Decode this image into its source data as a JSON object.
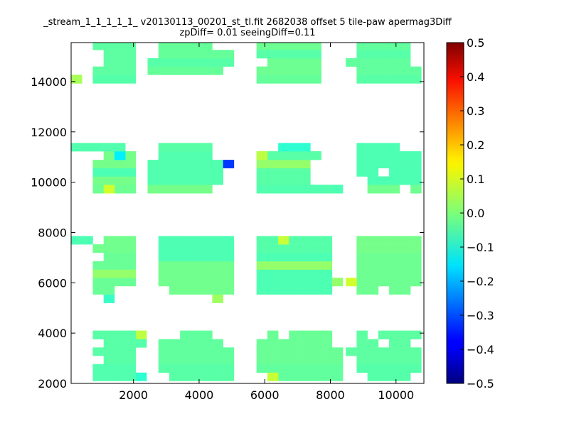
{
  "chart_data": {
    "type": "heatmap",
    "title_line1": "_stream_1_1_1_1_1_ v20130113_00201_st_tl.fit 2682038 offset 5 tile-paw apermag3Diff",
    "title_line2": "zpDiff= 0.01 seeingDiff=0.11",
    "xlim": [
      100,
      10850
    ],
    "ylim": [
      2000,
      15550
    ],
    "x_ticks": [
      2000,
      4000,
      6000,
      8000,
      10000
    ],
    "y_ticks": [
      2000,
      4000,
      6000,
      8000,
      10000,
      12000,
      14000
    ],
    "colorbar": {
      "range": [
        -0.5,
        0.5
      ],
      "ticks": [
        "0.5",
        "0.4",
        "0.3",
        "0.2",
        "0.1",
        "0.0",
        "−0.1",
        "−0.2",
        "−0.3",
        "−0.4",
        "−0.5"
      ],
      "colormap": "jet"
    },
    "cell_size": [
      330,
      330
    ],
    "base_value": -0.03,
    "regions": [
      {
        "x": [
          760,
          2070
        ],
        "y": [
          3760,
          4100
        ]
      },
      {
        "x": [
          2070,
          2400
        ],
        "y": [
          3760,
          4100
        ],
        "v": 0.06
      },
      {
        "x": [
          1090,
          2070
        ],
        "y": [
          3430,
          3760
        ]
      },
      {
        "x": [
          2070,
          2400
        ],
        "y": [
          3430,
          3760
        ]
      },
      {
        "x": [
          760,
          2070
        ],
        "y": [
          3100,
          3430
        ]
      },
      {
        "x": [
          1090,
          2070
        ],
        "y": [
          2770,
          3100
        ]
      },
      {
        "x": [
          760,
          2070
        ],
        "y": [
          2430,
          2770
        ]
      },
      {
        "x": [
          760,
          2070
        ],
        "y": [
          2100,
          2430
        ]
      },
      {
        "x": [
          2070,
          2400
        ],
        "y": [
          2100,
          2430
        ],
        "v": -0.08
      },
      {
        "x": [
          3420,
          4400
        ],
        "y": [
          3760,
          4100
        ]
      },
      {
        "x": [
          2760,
          4730
        ],
        "y": [
          3430,
          3760
        ]
      },
      {
        "x": [
          2760,
          5060
        ],
        "y": [
          3100,
          3430
        ]
      },
      {
        "x": [
          2760,
          5060
        ],
        "y": [
          2770,
          3100
        ]
      },
      {
        "x": [
          2760,
          5060
        ],
        "y": [
          2430,
          2770
        ]
      },
      {
        "x": [
          3090,
          5060
        ],
        "y": [
          2100,
          2430
        ]
      },
      {
        "x": [
          6080,
          6410
        ],
        "y": [
          3760,
          4100
        ]
      },
      {
        "x": [
          6740,
          8050
        ],
        "y": [
          3760,
          4100
        ]
      },
      {
        "x": [
          5750,
          8050
        ],
        "y": [
          3430,
          3760
        ]
      },
      {
        "x": [
          5750,
          8380
        ],
        "y": [
          3100,
          3430
        ]
      },
      {
        "x": [
          5750,
          8380
        ],
        "y": [
          2770,
          3100
        ]
      },
      {
        "x": [
          5750,
          8380
        ],
        "y": [
          2430,
          2770
        ]
      },
      {
        "x": [
          6080,
          8380
        ],
        "y": [
          2100,
          2430
        ]
      },
      {
        "x": [
          6080,
          6410
        ],
        "y": [
          2100,
          2430
        ],
        "v": 0.07
      },
      {
        "x": [
          8800,
          9130
        ],
        "y": [
          3760,
          4100
        ]
      },
      {
        "x": [
          9460,
          10770
        ],
        "y": [
          3760,
          4100
        ]
      },
      {
        "x": [
          8800,
          9460
        ],
        "y": [
          3430,
          3760
        ]
      },
      {
        "x": [
          9790,
          10440
        ],
        "y": [
          3430,
          3760
        ]
      },
      {
        "x": [
          8470,
          10770
        ],
        "y": [
          3100,
          3430
        ]
      },
      {
        "x": [
          8800,
          10770
        ],
        "y": [
          2770,
          3100
        ]
      },
      {
        "x": [
          8800,
          10770
        ],
        "y": [
          2430,
          2770
        ]
      },
      {
        "x": [
          9130,
          10440
        ],
        "y": [
          2100,
          2430
        ]
      },
      {
        "x": [
          1090,
          1420
        ],
        "y": [
          5200,
          5540
        ],
        "v": -0.07
      },
      {
        "x": [
          760,
          1420
        ],
        "y": [
          5540,
          5870
        ]
      },
      {
        "x": [
          760,
          2070
        ],
        "y": [
          5870,
          6200
        ]
      },
      {
        "x": [
          760,
          2070
        ],
        "y": [
          6200,
          6530
        ],
        "v": 0.02
      },
      {
        "x": [
          760,
          2070
        ],
        "y": [
          6530,
          6860
        ]
      },
      {
        "x": [
          1090,
          2070
        ],
        "y": [
          6860,
          7200
        ]
      },
      {
        "x": [
          760,
          2070
        ],
        "y": [
          7200,
          7530
        ]
      },
      {
        "x": [
          1090,
          2070
        ],
        "y": [
          7530,
          7860
        ]
      },
      {
        "x": [
          100,
          760
        ],
        "y": [
          7530,
          7860
        ],
        "v": -0.05
      },
      {
        "x": [
          4400,
          4730
        ],
        "y": [
          5200,
          5540
        ],
        "v": 0.03
      },
      {
        "x": [
          3090,
          5060
        ],
        "y": [
          5540,
          5870
        ]
      },
      {
        "x": [
          2760,
          5060
        ],
        "y": [
          5870,
          6200
        ]
      },
      {
        "x": [
          2760,
          5060
        ],
        "y": [
          6200,
          6530
        ]
      },
      {
        "x": [
          2760,
          5060
        ],
        "y": [
          6530,
          6860
        ]
      },
      {
        "x": [
          2760,
          5060
        ],
        "y": [
          6860,
          7200
        ],
        "v": -0.05
      },
      {
        "x": [
          2760,
          5060
        ],
        "y": [
          7200,
          7530
        ]
      },
      {
        "x": [
          2760,
          5060
        ],
        "y": [
          7530,
          7860
        ]
      },
      {
        "x": [
          5750,
          8050
        ],
        "y": [
          5540,
          5870
        ]
      },
      {
        "x": [
          5750,
          8050
        ],
        "y": [
          5870,
          6200
        ]
      },
      {
        "x": [
          8050,
          8380
        ],
        "y": [
          5870,
          6200
        ],
        "v": 0.02
      },
      {
        "x": [
          5750,
          8050
        ],
        "y": [
          6200,
          6530
        ]
      },
      {
        "x": [
          5750,
          8050
        ],
        "y": [
          6530,
          6860
        ],
        "v": 0.02
      },
      {
        "x": [
          5750,
          8050
        ],
        "y": [
          6860,
          7200
        ],
        "v": -0.05
      },
      {
        "x": [
          5750,
          8050
        ],
        "y": [
          7200,
          7530
        ]
      },
      {
        "x": [
          5750,
          6410
        ],
        "y": [
          7530,
          7860
        ]
      },
      {
        "x": [
          6410,
          6740
        ],
        "y": [
          7530,
          7860
        ],
        "v": 0.07
      },
      {
        "x": [
          6740,
          8050
        ],
        "y": [
          7530,
          7860
        ]
      },
      {
        "x": [
          8800,
          9460
        ],
        "y": [
          5540,
          5870
        ]
      },
      {
        "x": [
          9790,
          10440
        ],
        "y": [
          5540,
          5870
        ]
      },
      {
        "x": [
          8800,
          10770
        ],
        "y": [
          5870,
          6200
        ]
      },
      {
        "x": [
          8470,
          8800
        ],
        "y": [
          5870,
          6200
        ],
        "v": 0.08
      },
      {
        "x": [
          8800,
          10770
        ],
        "y": [
          6200,
          6530
        ]
      },
      {
        "x": [
          8800,
          10770
        ],
        "y": [
          6530,
          6860
        ]
      },
      {
        "x": [
          8800,
          10770
        ],
        "y": [
          6860,
          7200
        ]
      },
      {
        "x": [
          8800,
          10770
        ],
        "y": [
          7200,
          7530
        ]
      },
      {
        "x": [
          8800,
          10770
        ],
        "y": [
          7530,
          7860
        ]
      },
      {
        "x": [
          760,
          2070
        ],
        "y": [
          9560,
          9900
        ]
      },
      {
        "x": [
          1090,
          1420
        ],
        "y": [
          9560,
          9900
        ],
        "v": 0.08
      },
      {
        "x": [
          760,
          2070
        ],
        "y": [
          9900,
          10230
        ]
      },
      {
        "x": [
          760,
          2070
        ],
        "y": [
          10230,
          10560
        ],
        "v": -0.05
      },
      {
        "x": [
          760,
          2070
        ],
        "y": [
          10560,
          10890
        ]
      },
      {
        "x": [
          1090,
          2070
        ],
        "y": [
          10890,
          11230
        ]
      },
      {
        "x": [
          1420,
          1750
        ],
        "y": [
          10890,
          11230
        ],
        "v": -0.14
      },
      {
        "x": [
          100,
          1750
        ],
        "y": [
          11230,
          11560
        ]
      },
      {
        "x": [
          2430,
          4400
        ],
        "y": [
          9560,
          9900
        ]
      },
      {
        "x": [
          2430,
          4730
        ],
        "y": [
          9900,
          10230
        ]
      },
      {
        "x": [
          2430,
          4730
        ],
        "y": [
          10230,
          10560
        ]
      },
      {
        "x": [
          2430,
          4730
        ],
        "y": [
          10560,
          10890
        ]
      },
      {
        "x": [
          4730,
          5060
        ],
        "y": [
          10560,
          10890
        ],
        "v": -0.32
      },
      {
        "x": [
          2760,
          4400
        ],
        "y": [
          10890,
          11230
        ]
      },
      {
        "x": [
          2760,
          4400
        ],
        "y": [
          11230,
          11560
        ]
      },
      {
        "x": [
          5750,
          8050
        ],
        "y": [
          9560,
          9900
        ]
      },
      {
        "x": [
          8050,
          8380
        ],
        "y": [
          9560,
          9900
        ]
      },
      {
        "x": [
          5750,
          7390
        ],
        "y": [
          9900,
          10230
        ]
      },
      {
        "x": [
          5750,
          7390
        ],
        "y": [
          10230,
          10560
        ]
      },
      {
        "x": [
          5750,
          7390
        ],
        "y": [
          10560,
          10890
        ],
        "v": 0.02
      },
      {
        "x": [
          5750,
          7720
        ],
        "y": [
          10890,
          11230
        ]
      },
      {
        "x": [
          5750,
          6080
        ],
        "y": [
          10890,
          11230
        ],
        "v": 0.06
      },
      {
        "x": [
          6410,
          7390
        ],
        "y": [
          11230,
          11560
        ],
        "v": -0.08
      },
      {
        "x": [
          9130,
          10110
        ],
        "y": [
          9560,
          9900
        ]
      },
      {
        "x": [
          10440,
          10770
        ],
        "y": [
          9560,
          9900
        ]
      },
      {
        "x": [
          9130,
          10770
        ],
        "y": [
          9900,
          10230
        ]
      },
      {
        "x": [
          8800,
          9460
        ],
        "y": [
          10230,
          10560
        ]
      },
      {
        "x": [
          9790,
          10770
        ],
        "y": [
          10230,
          10560
        ]
      },
      {
        "x": [
          8800,
          10770
        ],
        "y": [
          10560,
          10890
        ]
      },
      {
        "x": [
          8800,
          10770
        ],
        "y": [
          10890,
          11230
        ]
      },
      {
        "x": [
          8800,
          10110
        ],
        "y": [
          11230,
          11560
        ],
        "v": -0.05
      },
      {
        "x": [
          100,
          430
        ],
        "y": [
          13930,
          14270
        ],
        "v": 0.04
      },
      {
        "x": [
          760,
          2070
        ],
        "y": [
          13930,
          14270
        ]
      },
      {
        "x": [
          760,
          2070
        ],
        "y": [
          14270,
          14600
        ]
      },
      {
        "x": [
          1090,
          2070
        ],
        "y": [
          14600,
          14930
        ]
      },
      {
        "x": [
          1090,
          2070
        ],
        "y": [
          14930,
          15260
        ]
      },
      {
        "x": [
          760,
          2070
        ],
        "y": [
          15260,
          15550
        ]
      },
      {
        "x": [
          2430,
          4730
        ],
        "y": [
          14270,
          14600
        ]
      },
      {
        "x": [
          2430,
          5060
        ],
        "y": [
          14600,
          14930
        ],
        "v": -0.04
      },
      {
        "x": [
          2760,
          5060
        ],
        "y": [
          14930,
          15260
        ]
      },
      {
        "x": [
          2760,
          4400
        ],
        "y": [
          15260,
          15550
        ]
      },
      {
        "x": [
          5750,
          7720
        ],
        "y": [
          13930,
          14270
        ]
      },
      {
        "x": [
          5750,
          7720
        ],
        "y": [
          14270,
          14600
        ]
      },
      {
        "x": [
          6080,
          7720
        ],
        "y": [
          14600,
          14930
        ]
      },
      {
        "x": [
          5750,
          7720
        ],
        "y": [
          14930,
          15260
        ],
        "v": -0.04
      },
      {
        "x": [
          5750,
          7720
        ],
        "y": [
          15260,
          15550
        ]
      },
      {
        "x": [
          8800,
          10770
        ],
        "y": [
          13930,
          14270
        ]
      },
      {
        "x": [
          8800,
          10770
        ],
        "y": [
          14270,
          14600
        ]
      },
      {
        "x": [
          8470,
          10440
        ],
        "y": [
          14600,
          14930
        ]
      },
      {
        "x": [
          8800,
          10440
        ],
        "y": [
          14930,
          15260
        ],
        "v": -0.04
      },
      {
        "x": [
          8800,
          10440
        ],
        "y": [
          15260,
          15550
        ]
      }
    ]
  }
}
